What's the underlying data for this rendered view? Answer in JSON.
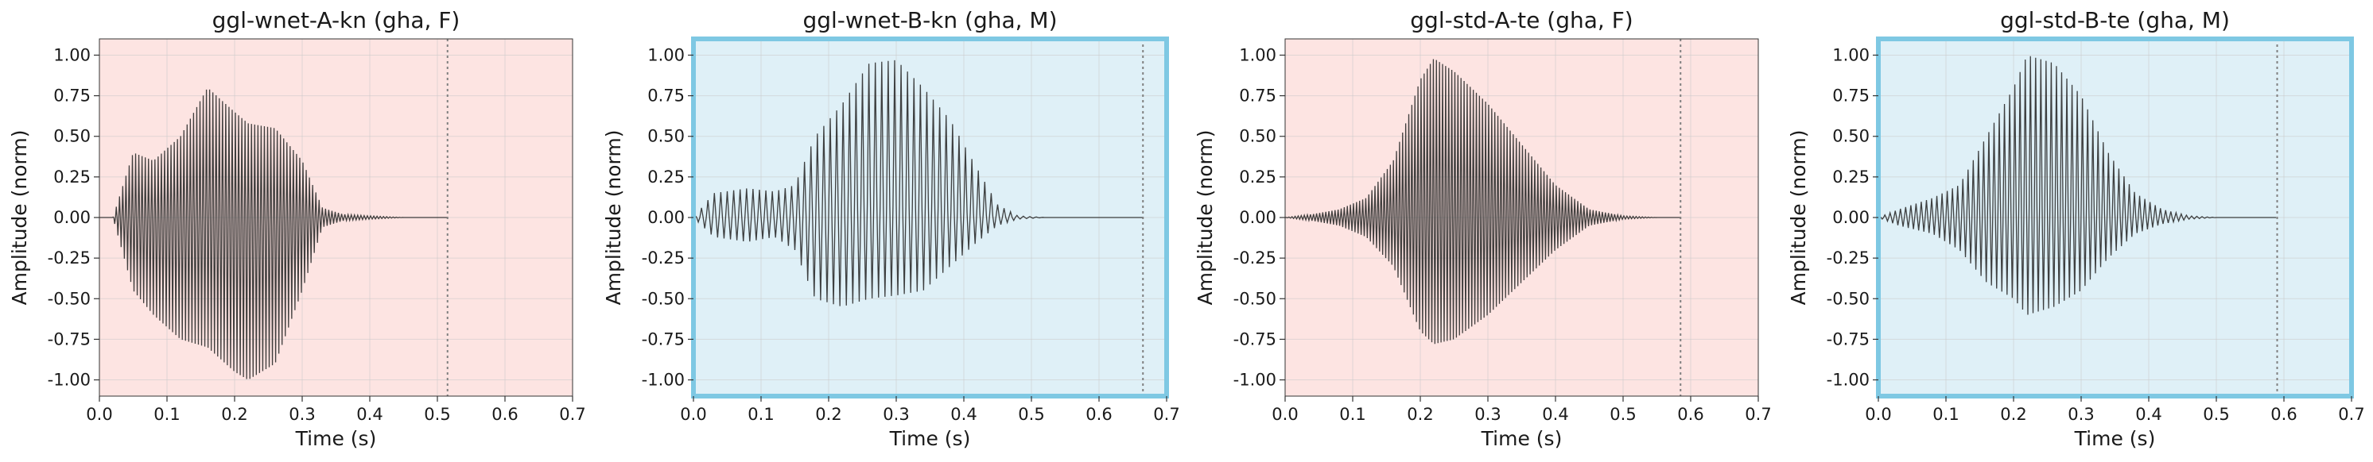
{
  "chart_data": [
    {
      "type": "line",
      "title": "ggl-wnet-A-kn (gha, F)",
      "xlabel": "Time (s)",
      "ylabel": "Amplitude (norm)",
      "xlim": [
        0.0,
        0.7
      ],
      "ylim": [
        -1.1,
        1.1
      ],
      "xticks": [
        "0.0",
        "0.1",
        "0.2",
        "0.3",
        "0.4",
        "0.5",
        "0.6",
        "0.7"
      ],
      "yticks": [
        "-1.00",
        "-0.75",
        "-0.50",
        "-0.25",
        "0.00",
        "0.25",
        "0.50",
        "0.75",
        "1.00"
      ],
      "background_color": "#fde4e2",
      "highlight_border": false,
      "waveform": {
        "end_time_s": 0.515,
        "envelope": {
          "t": [
            0.02,
            0.05,
            0.08,
            0.12,
            0.16,
            0.2,
            0.22,
            0.26,
            0.3,
            0.33,
            0.36,
            0.4,
            0.45,
            0.515
          ],
          "pos": [
            0.0,
            0.4,
            0.35,
            0.5,
            0.8,
            0.65,
            0.58,
            0.55,
            0.35,
            0.06,
            0.02,
            0.01,
            0.0,
            0.0
          ],
          "neg": [
            0.0,
            -0.45,
            -0.6,
            -0.75,
            -0.8,
            -0.95,
            -1.0,
            -0.9,
            -0.45,
            -0.06,
            -0.02,
            -0.01,
            0.0,
            0.0
          ]
        },
        "cycles_per_second": 210
      },
      "end_marker_x": 0.515,
      "grid": true
    },
    {
      "type": "line",
      "title": "ggl-wnet-B-kn (gha, M)",
      "xlabel": "Time (s)",
      "ylabel": "Amplitude (norm)",
      "xlim": [
        0.0,
        0.7
      ],
      "ylim": [
        -1.1,
        1.1
      ],
      "xticks": [
        "0.0",
        "0.1",
        "0.2",
        "0.3",
        "0.4",
        "0.5",
        "0.6",
        "0.7"
      ],
      "yticks": [
        "-1.00",
        "-0.75",
        "-0.50",
        "-0.25",
        "0.00",
        "0.25",
        "0.50",
        "0.75",
        "1.00"
      ],
      "background_color": "#dff0f7",
      "highlight_border": true,
      "border_color": "#7ec8e3",
      "waveform": {
        "end_time_s": 0.665,
        "envelope": {
          "t": [
            0.0,
            0.03,
            0.08,
            0.12,
            0.15,
            0.18,
            0.22,
            0.26,
            0.3,
            0.34,
            0.38,
            0.42,
            0.45,
            0.48,
            0.52,
            0.665
          ],
          "pos": [
            0.0,
            0.15,
            0.18,
            0.16,
            0.2,
            0.5,
            0.7,
            0.95,
            0.97,
            0.8,
            0.6,
            0.3,
            0.08,
            0.01,
            0.0,
            0.0
          ],
          "neg": [
            0.0,
            -0.12,
            -0.15,
            -0.12,
            -0.2,
            -0.5,
            -0.55,
            -0.5,
            -0.48,
            -0.45,
            -0.3,
            -0.15,
            -0.05,
            -0.01,
            0.0,
            0.0
          ]
        },
        "cycles_per_second": 105
      },
      "end_marker_x": 0.665,
      "grid": true
    },
    {
      "type": "line",
      "title": "ggl-std-A-te (gha, F)",
      "xlabel": "Time (s)",
      "ylabel": "Amplitude (norm)",
      "xlim": [
        0.0,
        0.7
      ],
      "ylim": [
        -1.1,
        1.1
      ],
      "xticks": [
        "0.0",
        "0.1",
        "0.2",
        "0.3",
        "0.4",
        "0.5",
        "0.6",
        "0.7"
      ],
      "yticks": [
        "-1.00",
        "-0.75",
        "-0.50",
        "-0.25",
        "0.00",
        "0.25",
        "0.50",
        "0.75",
        "1.00"
      ],
      "background_color": "#fde4e2",
      "highlight_border": false,
      "waveform": {
        "end_time_s": 0.585,
        "envelope": {
          "t": [
            0.0,
            0.04,
            0.08,
            0.12,
            0.16,
            0.2,
            0.22,
            0.25,
            0.3,
            0.35,
            0.4,
            0.45,
            0.5,
            0.55,
            0.585
          ],
          "pos": [
            0.0,
            0.02,
            0.05,
            0.12,
            0.35,
            0.85,
            0.98,
            0.9,
            0.7,
            0.45,
            0.2,
            0.05,
            0.01,
            0.0,
            0.0
          ],
          "neg": [
            0.0,
            -0.02,
            -0.05,
            -0.12,
            -0.3,
            -0.7,
            -0.78,
            -0.75,
            -0.6,
            -0.4,
            -0.2,
            -0.05,
            -0.01,
            0.0,
            0.0
          ]
        },
        "cycles_per_second": 220
      },
      "end_marker_x": 0.585,
      "grid": true
    },
    {
      "type": "line",
      "title": "ggl-std-B-te (gha, M)",
      "xlabel": "Time (s)",
      "ylabel": "Amplitude (norm)",
      "xlim": [
        0.0,
        0.7
      ],
      "ylim": [
        -1.1,
        1.1
      ],
      "xticks": [
        "0.0",
        "0.1",
        "0.2",
        "0.3",
        "0.4",
        "0.5",
        "0.6",
        "0.7"
      ],
      "yticks": [
        "-1.00",
        "-0.75",
        "-0.50",
        "-0.25",
        "0.00",
        "0.25",
        "0.50",
        "0.75",
        "1.00"
      ],
      "background_color": "#dff0f7",
      "highlight_border": true,
      "border_color": "#7ec8e3",
      "waveform": {
        "end_time_s": 0.59,
        "envelope": {
          "t": [
            0.0,
            0.03,
            0.08,
            0.12,
            0.16,
            0.2,
            0.22,
            0.26,
            0.3,
            0.34,
            0.38,
            0.42,
            0.46,
            0.5,
            0.59
          ],
          "pos": [
            0.0,
            0.05,
            0.12,
            0.2,
            0.5,
            0.8,
            1.0,
            0.95,
            0.75,
            0.4,
            0.15,
            0.05,
            0.01,
            0.0,
            0.0
          ],
          "neg": [
            0.0,
            -0.05,
            -0.1,
            -0.2,
            -0.4,
            -0.5,
            -0.6,
            -0.55,
            -0.45,
            -0.25,
            -0.1,
            -0.04,
            -0.01,
            0.0,
            0.0
          ]
        },
        "cycles_per_second": 130
      },
      "end_marker_x": 0.59,
      "grid": true
    }
  ]
}
